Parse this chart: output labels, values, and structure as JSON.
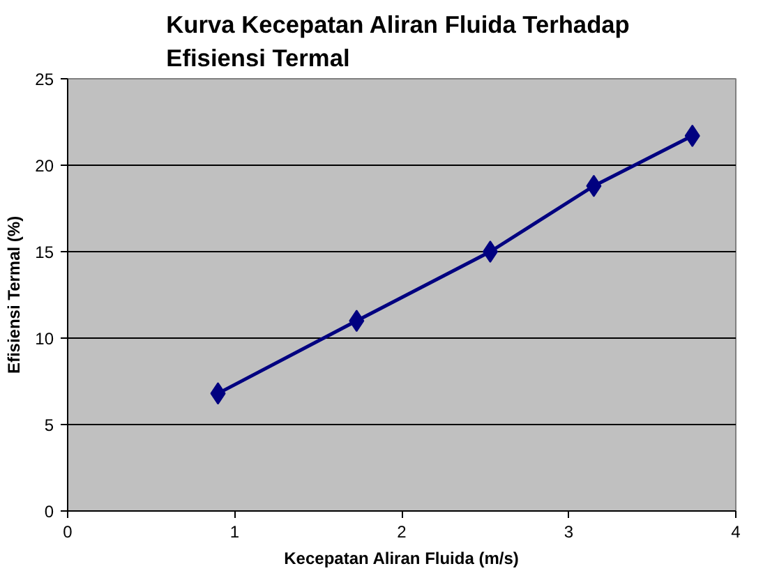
{
  "chart_data": {
    "type": "line",
    "title": "Kurva Kecepatan  Aliran Fluida Terhadap\nEfisiensi Termal",
    "xlabel": "Kecepatan Aliran Fluida (m/s)",
    "ylabel": "Efisiensi Termal (%)",
    "x": [
      0.9,
      1.73,
      2.53,
      3.15,
      3.74
    ],
    "series": [
      {
        "color": "#000080",
        "values": [
          6.8,
          11.0,
          15.0,
          18.8,
          21.7
        ]
      }
    ],
    "xlim": [
      0,
      4
    ],
    "xticks": [
      0,
      1,
      2,
      3,
      4
    ],
    "ylim": [
      0,
      25
    ],
    "yticks": [
      0,
      5,
      10,
      15,
      20,
      25
    ],
    "grid": "y",
    "marker": "diamond",
    "line_style": "solid"
  }
}
